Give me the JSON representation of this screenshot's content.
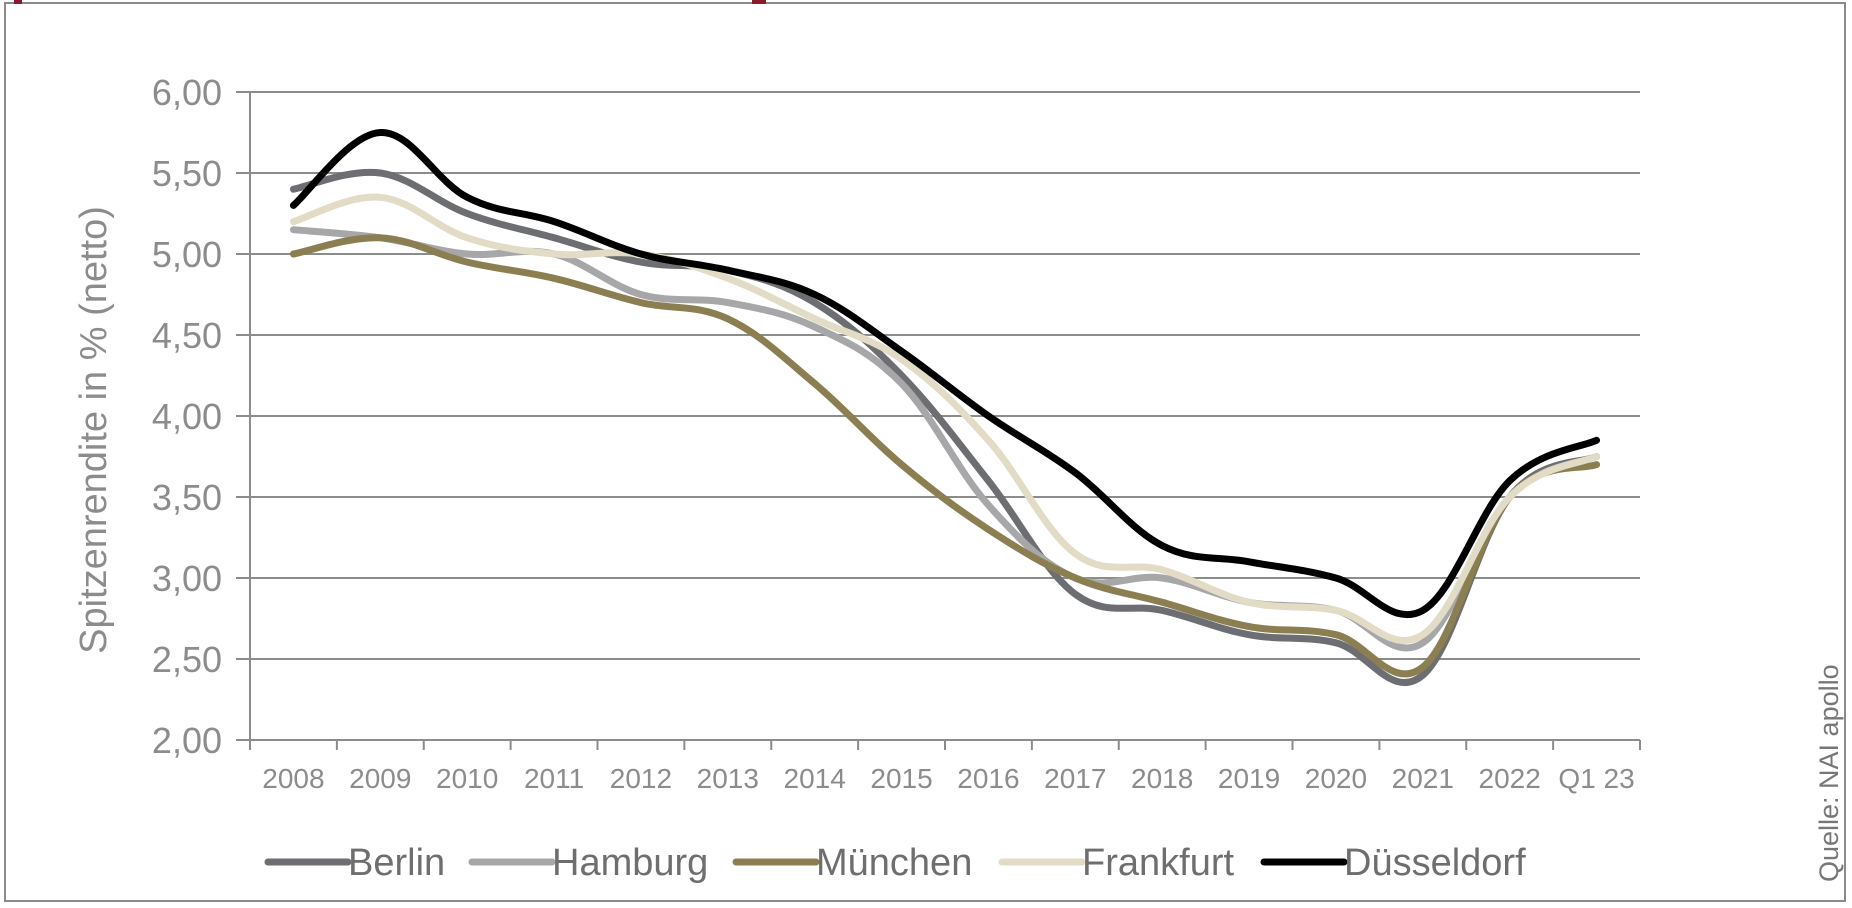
{
  "chart_data": {
    "type": "line",
    "title": "",
    "xlabel": "",
    "ylabel": "Spitzenrendite in % (netto)",
    "ylim": [
      2.0,
      6.0
    ],
    "yticks": [
      "2,00",
      "2,50",
      "3,00",
      "3,50",
      "4,00",
      "4,50",
      "5,00",
      "5,50",
      "6,00"
    ],
    "categories": [
      "2008",
      "2009",
      "2010",
      "2011",
      "2012",
      "2013",
      "2014",
      "2015",
      "2016",
      "2017",
      "2018",
      "2019",
      "2020",
      "2021",
      "2022",
      "Q1 23"
    ],
    "grid": true,
    "legend_position": "bottom",
    "series": [
      {
        "name": "Berlin",
        "color": "#6d6e71",
        "values": [
          5.4,
          5.5,
          5.25,
          5.1,
          4.95,
          4.9,
          4.7,
          4.25,
          3.6,
          2.9,
          2.8,
          2.65,
          2.6,
          2.4,
          3.5,
          3.75
        ]
      },
      {
        "name": "Hamburg",
        "color": "#a7a7a9",
        "values": [
          5.15,
          5.1,
          5.0,
          5.0,
          4.75,
          4.7,
          4.55,
          4.2,
          3.45,
          3.0,
          3.0,
          2.85,
          2.8,
          2.6,
          3.5,
          3.75
        ]
      },
      {
        "name": "München",
        "color": "#8b7f52",
        "values": [
          5.0,
          5.1,
          4.95,
          4.85,
          4.7,
          4.6,
          4.2,
          3.7,
          3.3,
          3.0,
          2.85,
          2.7,
          2.65,
          2.45,
          3.5,
          3.7
        ]
      },
      {
        "name": "Frankfurt",
        "color": "#e2dcc6",
        "values": [
          5.2,
          5.35,
          5.1,
          5.0,
          5.0,
          4.85,
          4.6,
          4.35,
          3.85,
          3.15,
          3.05,
          2.85,
          2.8,
          2.65,
          3.5,
          3.75
        ]
      },
      {
        "name": "Düsseldorf",
        "color": "#000000",
        "values": [
          5.3,
          5.75,
          5.35,
          5.2,
          5.0,
          4.9,
          4.75,
          4.4,
          4.0,
          3.65,
          3.2,
          3.1,
          3.0,
          2.8,
          3.6,
          3.85
        ]
      }
    ]
  },
  "source_note": "Quelle: NAI apollo",
  "colors": {
    "grid": "#8c8c8c",
    "axis": "#8c8c8c",
    "frame": "#8a8a8a",
    "accent": "#8b1a2b"
  }
}
